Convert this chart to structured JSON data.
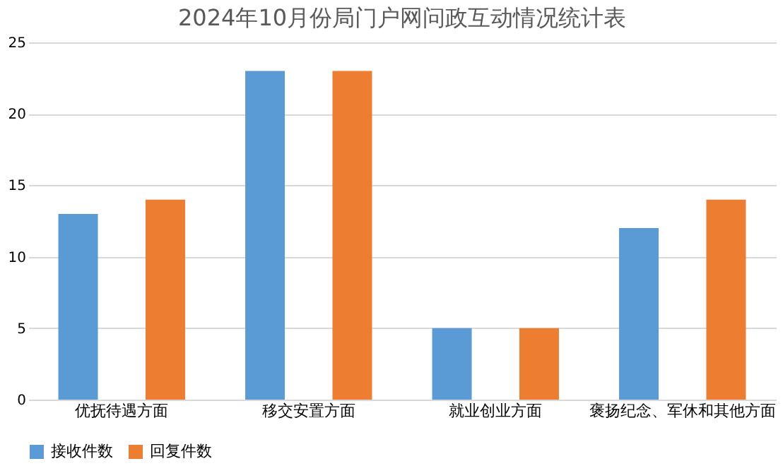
{
  "chart_data": {
    "type": "bar",
    "title": "2024年10月份局门户网问政互动情况统计表",
    "categories": [
      "优抚待遇方面",
      "移交安置方面",
      "就业创业方面",
      "褒扬纪念、军休和其他方面"
    ],
    "series": [
      {
        "name": "接收件数",
        "color": "#5b9bd5",
        "values": [
          13,
          23,
          5,
          12
        ]
      },
      {
        "name": "回复件数",
        "color": "#ed7d31",
        "values": [
          14,
          23,
          5,
          14
        ]
      }
    ],
    "ylim": [
      0,
      25
    ],
    "yticks": [
      0,
      5,
      10,
      15,
      20,
      25
    ],
    "grid": "y",
    "legend": "bottom"
  }
}
